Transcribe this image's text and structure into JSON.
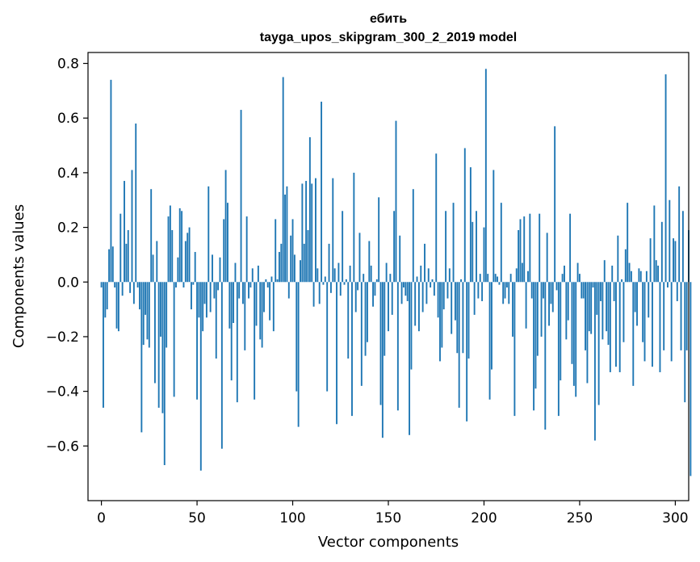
{
  "chart_data": {
    "type": "bar",
    "title": "ебить",
    "subtitle": "tayga_upos_skipgram_300_2_2019 model",
    "xlabel": "Vector components",
    "ylabel": "Components values",
    "xlim": [
      -7,
      307
    ],
    "ylim": [
      -0.8,
      0.84
    ],
    "xticks": [
      0,
      50,
      100,
      150,
      200,
      250,
      300
    ],
    "yticks": [
      -0.6,
      -0.4,
      -0.2,
      0.0,
      0.2,
      0.4,
      0.6,
      0.8
    ],
    "ytick_labels": [
      "−0.6",
      "−0.4",
      "−0.2",
      "0.0",
      "0.2",
      "0.4",
      "0.6",
      "0.8"
    ],
    "bar_color": "#1f77b4",
    "values": [
      -0.02,
      -0.46,
      -0.13,
      -0.1,
      0.12,
      0.74,
      0.13,
      -0.02,
      -0.17,
      -0.18,
      0.25,
      -0.05,
      0.37,
      0.14,
      0.19,
      -0.04,
      0.41,
      -0.08,
      0.58,
      -0.02,
      -0.1,
      -0.55,
      -0.23,
      -0.12,
      -0.21,
      -0.24,
      0.34,
      0.1,
      -0.37,
      0.15,
      -0.46,
      -0.2,
      -0.48,
      -0.67,
      -0.24,
      0.24,
      0.28,
      0.19,
      -0.42,
      -0.02,
      0.09,
      0.27,
      0.26,
      -0.02,
      0.15,
      0.18,
      0.2,
      -0.1,
      -0.01,
      0.11,
      -0.43,
      -0.13,
      -0.69,
      -0.18,
      -0.08,
      -0.13,
      0.35,
      -0.11,
      0.1,
      -0.06,
      -0.28,
      -0.03,
      0.09,
      -0.61,
      0.23,
      0.41,
      0.29,
      -0.17,
      -0.36,
      -0.15,
      0.07,
      -0.44,
      -0.06,
      0.63,
      -0.08,
      -0.25,
      0.24,
      -0.06,
      -0.02,
      0.05,
      -0.43,
      -0.16,
      0.06,
      -0.21,
      -0.24,
      -0.11,
      0.01,
      -0.02,
      -0.14,
      0.02,
      -0.18,
      0.23,
      0.01,
      0.11,
      0.14,
      0.75,
      0.32,
      0.35,
      -0.06,
      0.17,
      0.23,
      0.1,
      -0.4,
      -0.53,
      0.08,
      0.36,
      0.14,
      0.37,
      0.19,
      0.53,
      0.36,
      -0.09,
      0.38,
      0.05,
      -0.08,
      0.66,
      -0.01,
      0.02,
      -0.4,
      0.14,
      -0.04,
      0.38,
      0.05,
      -0.52,
      0.07,
      -0.05,
      0.26,
      -0.01,
      0.01,
      -0.28,
      0.06,
      -0.49,
      0.4,
      -0.11,
      -0.03,
      0.18,
      -0.38,
      0.03,
      -0.27,
      -0.22,
      0.15,
      0.06,
      -0.09,
      -0.05,
      0.01,
      0.31,
      -0.45,
      -0.57,
      -0.27,
      0.07,
      -0.18,
      0.03,
      -0.12,
      0.26,
      0.59,
      -0.47,
      0.17,
      -0.08,
      -0.02,
      -0.05,
      -0.07,
      -0.56,
      -0.32,
      0.34,
      -0.16,
      0.02,
      -0.18,
      0.06,
      -0.11,
      0.14,
      -0.08,
      0.05,
      -0.02,
      0.01,
      -0.05,
      0.47,
      -0.13,
      -0.29,
      -0.24,
      -0.1,
      0.26,
      -0.06,
      0.05,
      -0.19,
      0.29,
      -0.14,
      -0.26,
      -0.46,
      0.01,
      -0.26,
      0.49,
      -0.51,
      -0.28,
      0.42,
      0.22,
      -0.12,
      0.26,
      -0.06,
      0.03,
      -0.07,
      0.2,
      0.78,
      0.03,
      -0.43,
      -0.32,
      0.41,
      0.03,
      0.02,
      -0.01,
      0.29,
      -0.08,
      -0.06,
      -0.02,
      -0.08,
      0.03,
      -0.2,
      -0.49,
      0.05,
      0.19,
      0.23,
      0.07,
      0.24,
      -0.17,
      0.04,
      0.25,
      -0.06,
      -0.47,
      -0.39,
      -0.27,
      0.25,
      -0.2,
      -0.06,
      -0.54,
      0.18,
      -0.16,
      -0.08,
      -0.11,
      0.57,
      -0.03,
      -0.49,
      -0.36,
      0.03,
      0.06,
      -0.21,
      -0.14,
      0.25,
      -0.3,
      -0.38,
      -0.42,
      0.07,
      0.03,
      -0.06,
      -0.06,
      -0.25,
      -0.37,
      -0.18,
      -0.19,
      -0.02,
      -0.58,
      -0.12,
      -0.45,
      -0.07,
      -0.21,
      0.08,
      -0.18,
      -0.23,
      -0.33,
      0.06,
      -0.07,
      -0.31,
      0.17,
      -0.33,
      0.01,
      -0.22,
      0.12,
      0.29,
      0.07,
      0.04,
      -0.38,
      -0.11,
      -0.16,
      0.05,
      0.04,
      -0.22,
      -0.29,
      0.04,
      -0.13,
      0.16,
      -0.31,
      0.28,
      0.08,
      0.06,
      -0.33,
      0.22,
      -0.25,
      0.76,
      -0.02,
      0.3,
      -0.29,
      0.16,
      0.15,
      -0.07,
      0.35,
      -0.25,
      0.26,
      -0.44,
      -0.25,
      0.19,
      -0.71
    ]
  }
}
